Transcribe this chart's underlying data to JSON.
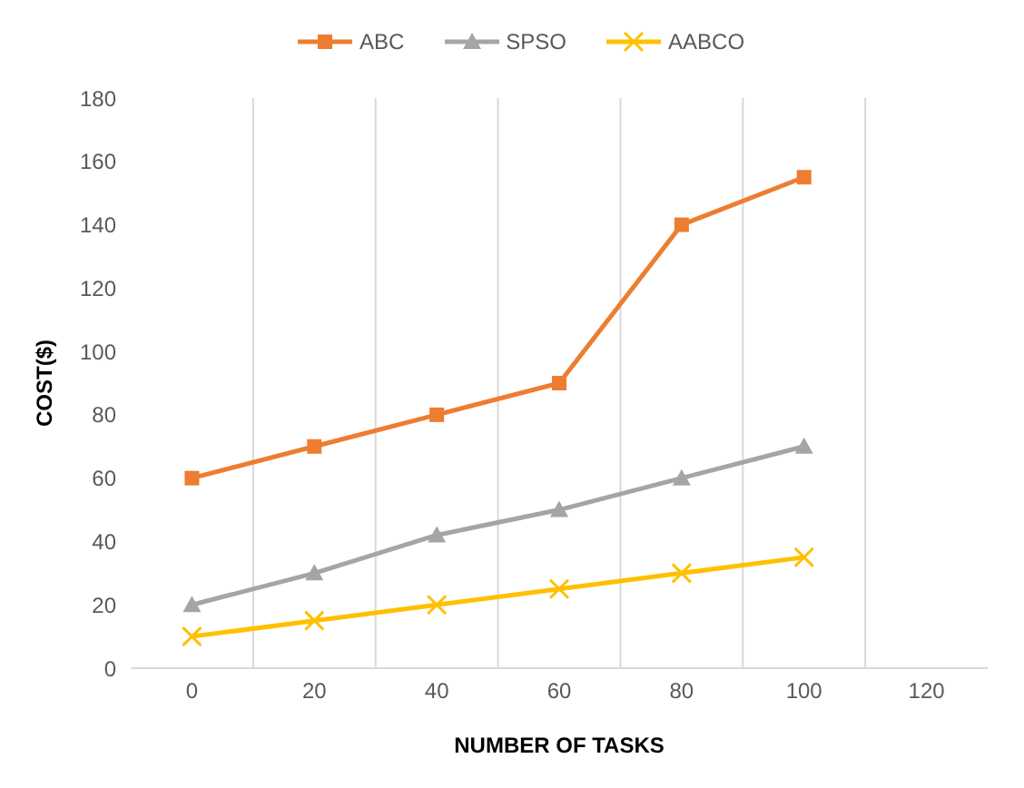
{
  "chart_data": {
    "type": "line",
    "xlabel": "NUMBER OF TASKS",
    "ylabel": "COST($)",
    "categories": [
      "0",
      "20",
      "40",
      "60",
      "80",
      "100",
      "120"
    ],
    "series": [
      {
        "name": "ABC",
        "color": "#ed7d31",
        "marker": "square",
        "values": [
          60,
          70,
          80,
          90,
          140,
          155,
          null
        ]
      },
      {
        "name": "SPSO",
        "color": "#a5a5a5",
        "marker": "triangle",
        "values": [
          20,
          30,
          42,
          50,
          60,
          70,
          null
        ]
      },
      {
        "name": "AABCO",
        "color": "#ffc000",
        "marker": "cross",
        "values": [
          10,
          15,
          20,
          25,
          30,
          35,
          null
        ]
      }
    ],
    "ylim": [
      0,
      180
    ],
    "yticks": [
      0,
      20,
      40,
      60,
      80,
      100,
      120,
      140,
      160,
      180
    ],
    "grid": "x",
    "legend": "top"
  }
}
